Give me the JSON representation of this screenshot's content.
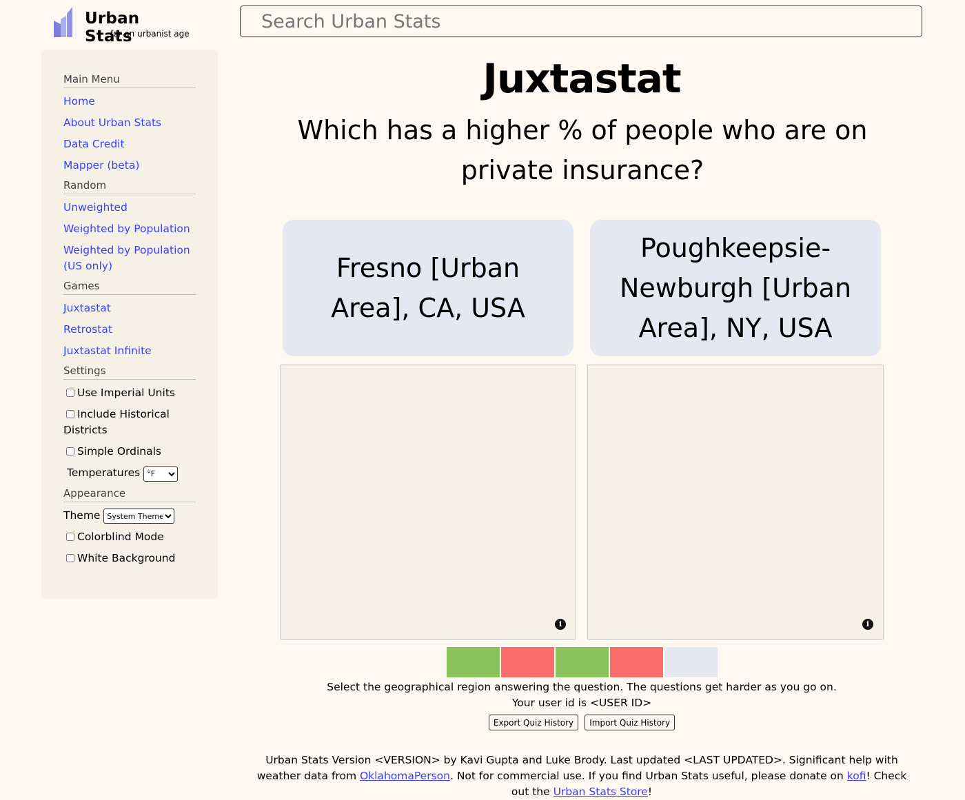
{
  "header": {
    "logo_title": "Urban Stats",
    "logo_subtitle": "for an urbanist age",
    "search_placeholder": "Search Urban Stats"
  },
  "sidebar": {
    "sections": [
      {
        "title": "Main Menu",
        "links": [
          "Home",
          "About Urban Stats",
          "Data Credit",
          "Mapper (beta)"
        ]
      },
      {
        "title": "Random",
        "links": [
          "Unweighted",
          "Weighted by Population",
          "Weighted by Population (US only)"
        ]
      },
      {
        "title": "Games",
        "links": [
          "Juxtastat",
          "Retrostat",
          "Juxtastat Infinite"
        ]
      }
    ],
    "settings_title": "Settings",
    "settings": {
      "imperial": "Use Imperial Units",
      "historical": "Include Historical Districts",
      "ordinals": "Simple Ordinals",
      "temperatures_label": "Temperatures",
      "temperatures_value": "°F"
    },
    "appearance_title": "Appearance",
    "appearance": {
      "theme_label": "Theme",
      "theme_value": "System Theme",
      "colorblind": "Colorblind Mode",
      "white_bg": "White Background"
    }
  },
  "main": {
    "title": "Juxtastat",
    "question": "Which has a higher % of people who are on private insurance?",
    "choice_a": "Fresno [Urban Area], CA, USA",
    "choice_b": "Poughkeepsie-Newburgh [Urban Area], NY, USA",
    "info_icon": "i",
    "progress": [
      "correct",
      "incorrect",
      "correct",
      "incorrect",
      "pending"
    ],
    "colors": {
      "correct": "#8ac35e",
      "incorrect": "#f96d6d",
      "pending": "#e5e8f1"
    },
    "instructions": "Select the geographical region answering the question. The questions get harder as you go on.",
    "user_id_line": "Your user id is <USER ID>",
    "export_button": "Export Quiz History",
    "import_button": "Import Quiz History"
  },
  "footer": {
    "part1": "Urban Stats Version <VERSION> by Kavi Gupta and Luke Brody. Last updated <LAST UPDATED>. Significant help with weather data from ",
    "link1": "OklahomaPerson",
    "part2": ". Not for commercial use. If you find Urban Stats useful, please donate on ",
    "link2": "kofi",
    "part3": "! Check out the ",
    "link3": "Urban Stats Store",
    "part4": "!"
  }
}
